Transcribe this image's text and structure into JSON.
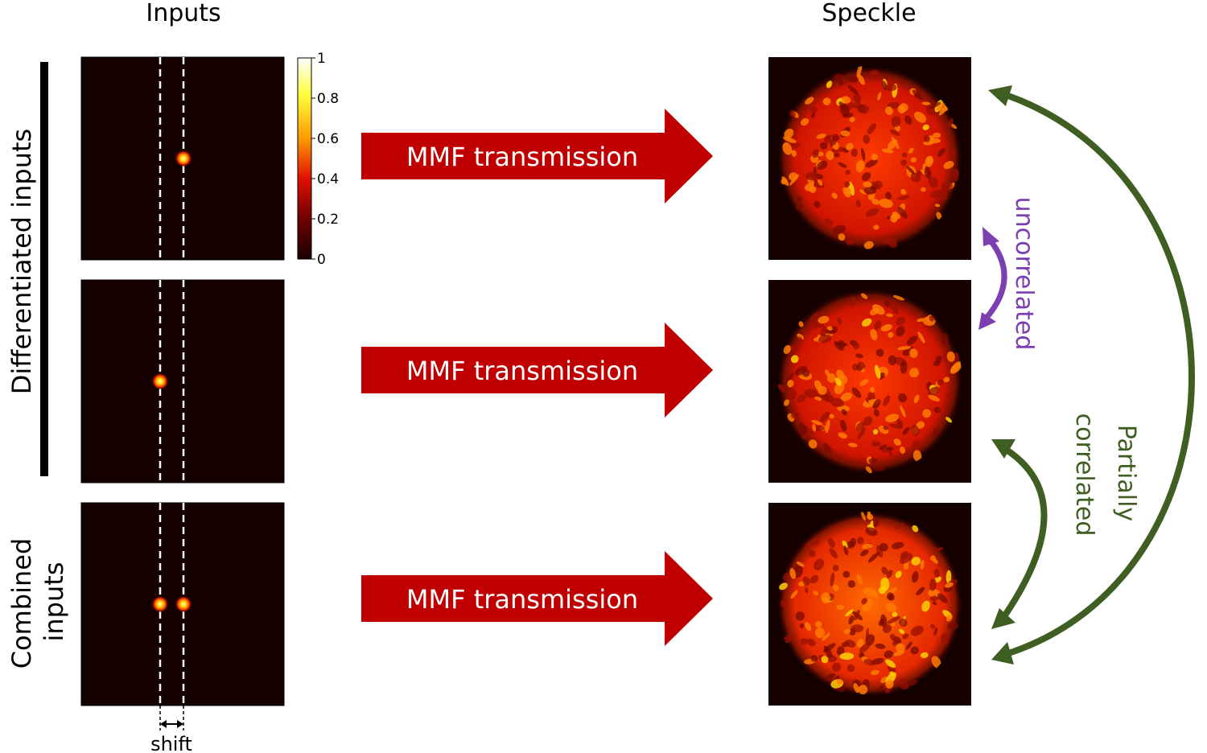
{
  "headers": {
    "inputs": "Inputs",
    "speckle": "Speckle"
  },
  "side_labels": {
    "differentiated": "Differentiated inputs",
    "combined_line1": "Combined",
    "combined_line2": "inputs"
  },
  "colorbar": {
    "ticks": [
      "1",
      "0.8",
      "0.6",
      "0.4",
      "0.2",
      "0"
    ],
    "colors": [
      "#ffffff",
      "#ffff40",
      "#ff9a00",
      "#e01000",
      "#700000",
      "#1a0000"
    ]
  },
  "arrows": [
    {
      "label": "MMF transmission"
    },
    {
      "label": "MMF transmission"
    },
    {
      "label": "MMF transmission"
    }
  ],
  "shift_label": "shift",
  "correlation": {
    "uncorrelated": "uncorrelated",
    "partially_line1": "Partially",
    "partially_line2": "correlated",
    "colors": {
      "uncorrelated": "#7b3fb0",
      "partially": "#3f5e22"
    }
  },
  "colors": {
    "arrow_red": "#c00000",
    "panel_bg": "#150000"
  }
}
